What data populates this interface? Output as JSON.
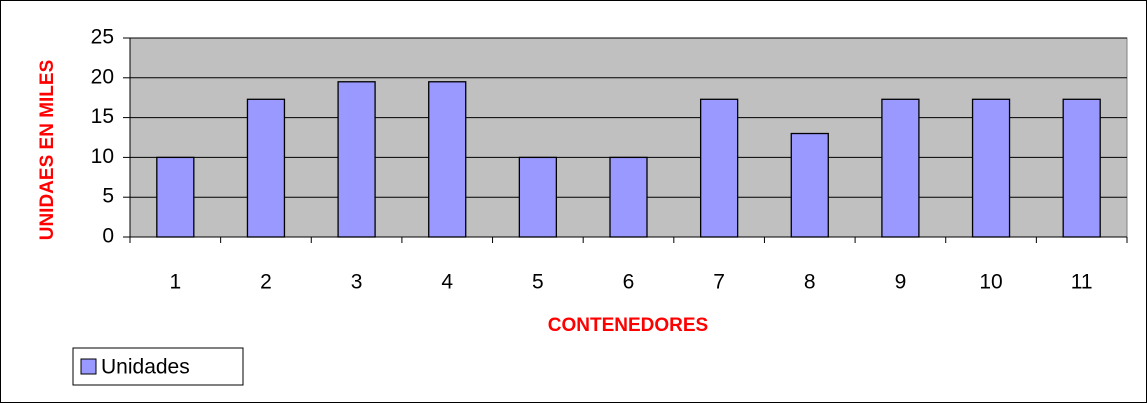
{
  "chart_data": {
    "type": "bar",
    "x_label": "CONTENEDORES",
    "y_label": "UNIDAES EN MILES",
    "categories": [
      "1",
      "2",
      "3",
      "4",
      "5",
      "6",
      "7",
      "8",
      "9",
      "10",
      "11"
    ],
    "series": [
      {
        "name": "Unidades",
        "color": "#9999ff",
        "values": [
          10,
          17.3,
          19.5,
          19.5,
          10,
          10,
          17.3,
          13,
          17.3,
          17.3,
          17.3
        ]
      }
    ],
    "ylim": [
      0,
      25
    ],
    "yticks": [
      0,
      5,
      10,
      15,
      20,
      25
    ],
    "grid": true,
    "plot_background": "#c0c0c0",
    "legend": "bottom-left"
  }
}
